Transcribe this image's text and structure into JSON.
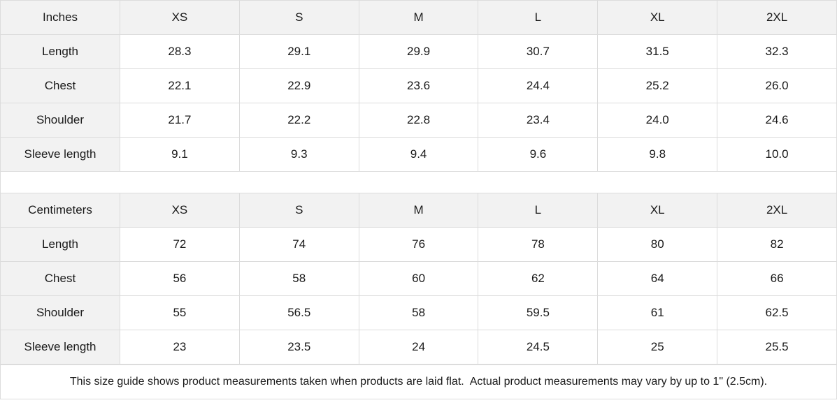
{
  "sizes": [
    "XS",
    "S",
    "M",
    "L",
    "XL",
    "2XL"
  ],
  "tables": [
    {
      "unit": "Inches",
      "rows": [
        {
          "label": "Length",
          "values": [
            "28.3",
            "29.1",
            "29.9",
            "30.7",
            "31.5",
            "32.3"
          ]
        },
        {
          "label": "Chest",
          "values": [
            "22.1",
            "22.9",
            "23.6",
            "24.4",
            "25.2",
            "26.0"
          ]
        },
        {
          "label": "Shoulder",
          "values": [
            "21.7",
            "22.2",
            "22.8",
            "23.4",
            "24.0",
            "24.6"
          ]
        },
        {
          "label": "Sleeve length",
          "values": [
            "9.1",
            "9.3",
            "9.4",
            "9.6",
            "9.8",
            "10.0"
          ]
        }
      ]
    },
    {
      "unit": "Centimeters",
      "rows": [
        {
          "label": "Length",
          "values": [
            "72",
            "74",
            "76",
            "78",
            "80",
            "82"
          ]
        },
        {
          "label": "Chest",
          "values": [
            "56",
            "58",
            "60",
            "62",
            "64",
            "66"
          ]
        },
        {
          "label": "Shoulder",
          "values": [
            "55",
            "56.5",
            "58",
            "59.5",
            "61",
            "62.5"
          ]
        },
        {
          "label": "Sleeve length",
          "values": [
            "23",
            "23.5",
            "24",
            "24.5",
            "25",
            "25.5"
          ]
        }
      ]
    }
  ],
  "note": "This size guide shows product measurements taken when products are laid flat.  Actual product measurements may vary by up to 1\" (2.5cm).",
  "colors": {
    "header_bg": "#f2f2f2",
    "border": "#dcdcdc",
    "text": "#1a1a1a"
  }
}
